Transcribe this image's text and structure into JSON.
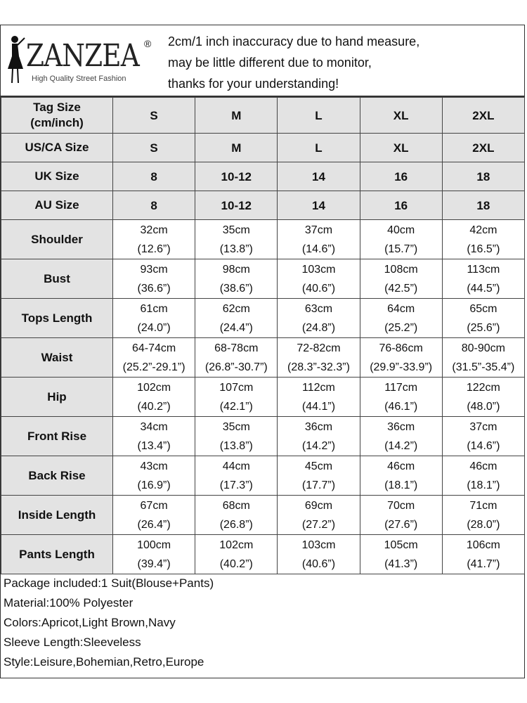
{
  "header": {
    "brand": "ZANZEA",
    "registered": "®",
    "tagline": "High Quality Street Fashion",
    "notes": [
      "2cm/1 inch inaccuracy due to hand measure,",
      "may be little different due to monitor,",
      "thanks for your understanding!"
    ]
  },
  "size_rows": [
    {
      "label": "Tag Size\n(cm/inch)",
      "values": [
        "S",
        "M",
        "L",
        "XL",
        "2XL"
      ]
    },
    {
      "label": "US/CA Size",
      "values": [
        "S",
        "M",
        "L",
        "XL",
        "2XL"
      ]
    },
    {
      "label": "UK Size",
      "values": [
        "8",
        "10-12",
        "14",
        "16",
        "18"
      ]
    },
    {
      "label": "AU Size",
      "values": [
        "8",
        "10-12",
        "14",
        "16",
        "18"
      ]
    }
  ],
  "measure_rows": [
    {
      "label": "Shoulder",
      "cm": [
        "32cm",
        "35cm",
        "37cm",
        "40cm",
        "42cm"
      ],
      "inch": [
        "(12.6”)",
        "(13.8”)",
        "(14.6”)",
        "(15.7”)",
        "(16.5”)"
      ]
    },
    {
      "label": "Bust",
      "cm": [
        "93cm",
        "98cm",
        "103cm",
        "108cm",
        "113cm"
      ],
      "inch": [
        "(36.6”)",
        "(38.6”)",
        "(40.6”)",
        "(42.5”)",
        "(44.5”)"
      ]
    },
    {
      "label": "Tops Length",
      "cm": [
        "61cm",
        "62cm",
        "63cm",
        "64cm",
        "65cm"
      ],
      "inch": [
        "(24.0”)",
        "(24.4”)",
        "(24.8”)",
        "(25.2”)",
        "(25.6”)"
      ]
    },
    {
      "label": "Waist",
      "cm": [
        "64-74cm",
        "68-78cm",
        "72-82cm",
        "76-86cm",
        "80-90cm"
      ],
      "inch": [
        "(25.2”-29.1”)",
        "(26.8”-30.7”)",
        "(28.3”-32.3”)",
        "(29.9”-33.9”)",
        "(31.5”-35.4”)"
      ]
    },
    {
      "label": "Hip",
      "cm": [
        "102cm",
        "107cm",
        "112cm",
        "117cm",
        "122cm"
      ],
      "inch": [
        "(40.2”)",
        "(42.1”)",
        "(44.1”)",
        "(46.1”)",
        "(48.0”)"
      ]
    },
    {
      "label": "Front Rise",
      "cm": [
        "34cm",
        "35cm",
        "36cm",
        "36cm",
        "37cm"
      ],
      "inch": [
        "(13.4”)",
        "(13.8”)",
        "(14.2”)",
        "(14.2”)",
        "(14.6”)"
      ]
    },
    {
      "label": "Back Rise",
      "cm": [
        "43cm",
        "44cm",
        "45cm",
        "46cm",
        "46cm"
      ],
      "inch": [
        "(16.9”)",
        "(17.3”)",
        "(17.7”)",
        "(18.1”)",
        "(18.1”)"
      ]
    },
    {
      "label": "Inside Length",
      "cm": [
        "67cm",
        "68cm",
        "69cm",
        "70cm",
        "71cm"
      ],
      "inch": [
        "(26.4”)",
        "(26.8”)",
        "(27.2”)",
        "(27.6”)",
        "(28.0”)"
      ]
    },
    {
      "label": "Pants Length",
      "cm": [
        "100cm",
        "102cm",
        "103cm",
        "105cm",
        "106cm"
      ],
      "inch": [
        "(39.4”)",
        "(40.2”)",
        "(40.6”)",
        "(41.3”)",
        "(41.7”)"
      ]
    }
  ],
  "footer": [
    "Package included:1 Suit(Blouse+Pants)",
    "Material:100% Polyester",
    "Colors:Apricot,Light Brown,Navy",
    "Sleeve Length:Sleeveless",
    "Style:Leisure,Bohemian,Retro,Europe"
  ]
}
